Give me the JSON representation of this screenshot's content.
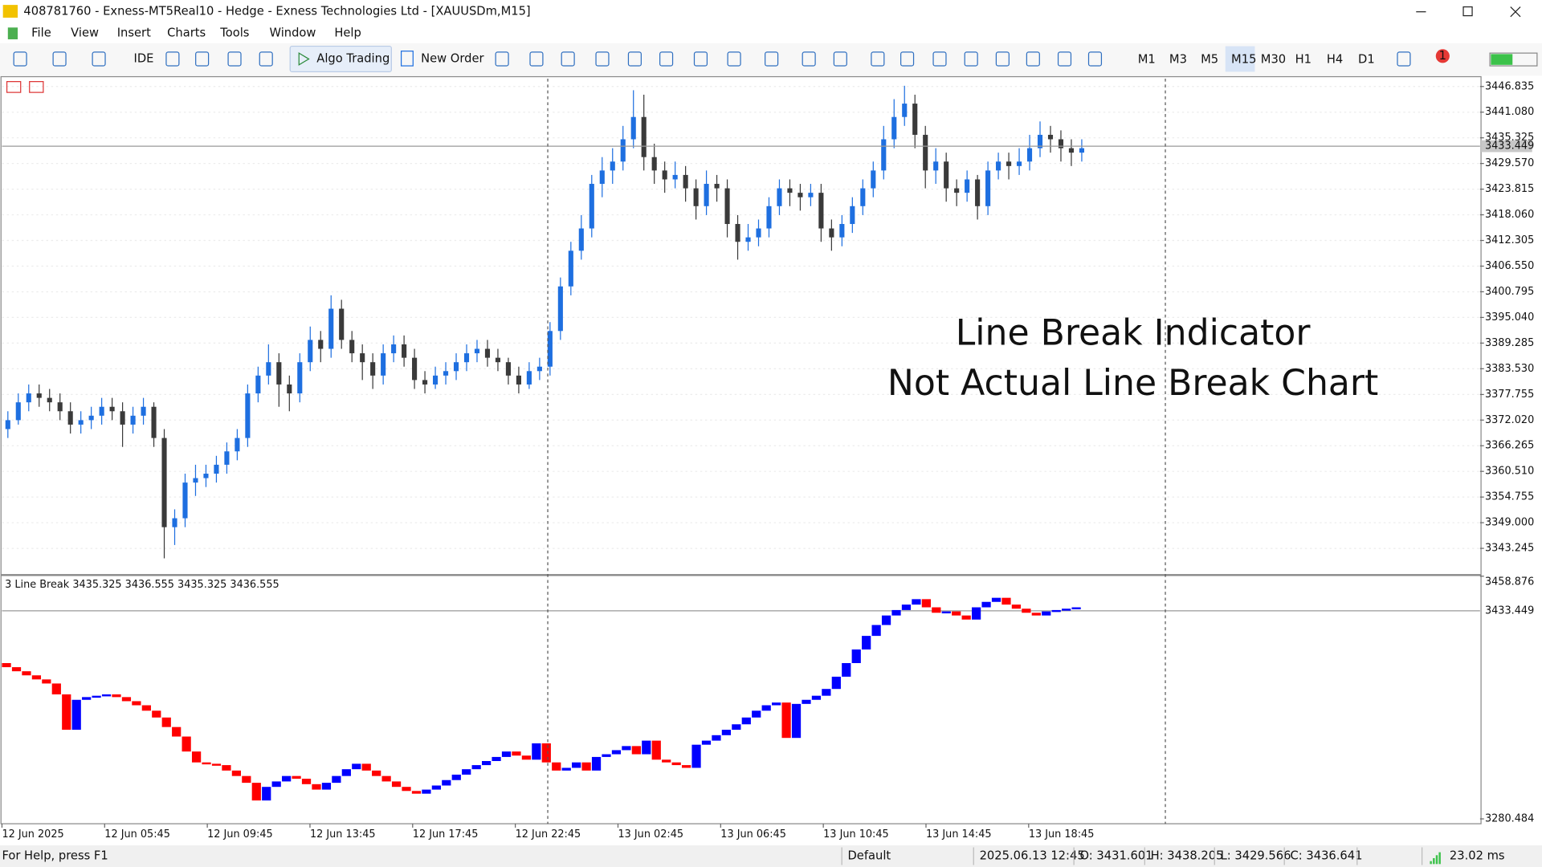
{
  "window": {
    "title": "408781760 - Exness-MT5Real10 - Hedge - Exness Technologies Ltd - [XAUUSDm,M15]"
  },
  "menu": [
    "File",
    "View",
    "Insert",
    "Charts",
    "Tools",
    "Window",
    "Help"
  ],
  "toolbar": {
    "buttons": [
      "IDE",
      "Algo Trading",
      "New Order"
    ],
    "timeframes": [
      "M1",
      "M3",
      "M5",
      "M15",
      "M30",
      "H1",
      "H4",
      "D1"
    ],
    "active_timeframe": "M15",
    "notifications": "1"
  },
  "chart_data": [
    {
      "type": "candlestick",
      "up_color": "#1e6fe0",
      "down_color": "#3a3a3a",
      "grid": true,
      "ylim": [
        3337.7,
        3448.6
      ],
      "yticks": [
        3446.835,
        {
          "value": 3441.08,
          "label": "3441.080"
        },
        3435.325,
        {
          "value": 3429.57,
          "label": "3429.570"
        },
        3423.815,
        {
          "value": 3418.06,
          "label": "3418.060"
        },
        3412.305,
        {
          "value": 3406.55,
          "label": "3406.550"
        },
        3400.795,
        {
          "value": 3395.04,
          "label": "3395.040"
        },
        3389.285,
        {
          "value": 3383.53,
          "label": "3383.530"
        },
        3377.755,
        {
          "value": 3372.02,
          "label": "3372.020"
        },
        3366.265,
        {
          "value": 3360.51,
          "label": "3360.510"
        },
        3354.755,
        {
          "value": 3349,
          "label": "3349.000"
        },
        3343.245
      ],
      "current_price": 3433.449,
      "annotations": [
        "Line Break Indicator",
        "Not Actual Line Break Chart"
      ],
      "annotation_color": "#6a2ddb",
      "candles": [
        [
          3370,
          3374,
          3368,
          3372
        ],
        [
          3372,
          3378,
          3371,
          3376
        ],
        [
          3376,
          3380,
          3374,
          3378
        ],
        [
          3378,
          3380,
          3375,
          3377
        ],
        [
          3377,
          3379,
          3374,
          3376
        ],
        [
          3376,
          3378,
          3372,
          3374
        ],
        [
          3374,
          3376,
          3369,
          3371
        ],
        [
          3371,
          3374,
          3369,
          3372
        ],
        [
          3372,
          3375,
          3370,
          3373
        ],
        [
          3373,
          3377,
          3371,
          3375
        ],
        [
          3375,
          3377,
          3372,
          3374
        ],
        [
          3374,
          3376,
          3366,
          3371
        ],
        [
          3371,
          3375,
          3369,
          3373
        ],
        [
          3373,
          3377,
          3371,
          3375
        ],
        [
          3375,
          3376,
          3366,
          3368
        ],
        [
          3368,
          3370,
          3341,
          3348
        ],
        [
          3348,
          3352,
          3344,
          3350
        ],
        [
          3350,
          3360,
          3348,
          3358
        ],
        [
          3358,
          3362,
          3355,
          3359
        ],
        [
          3359,
          3362,
          3357,
          3360
        ],
        [
          3360,
          3364,
          3358,
          3362
        ],
        [
          3362,
          3367,
          3360,
          3365
        ],
        [
          3365,
          3370,
          3363,
          3368
        ],
        [
          3368,
          3380,
          3366,
          3378
        ],
        [
          3378,
          3384,
          3376,
          3382
        ],
        [
          3382,
          3389,
          3380,
          3385
        ],
        [
          3385,
          3387,
          3375,
          3380
        ],
        [
          3380,
          3382,
          3374,
          3378
        ],
        [
          3378,
          3387,
          3376,
          3385
        ],
        [
          3385,
          3393,
          3383,
          3390
        ],
        [
          3390,
          3392,
          3385,
          3388
        ],
        [
          3388,
          3400,
          3386,
          3397
        ],
        [
          3397,
          3399,
          3388,
          3390
        ],
        [
          3390,
          3392,
          3385,
          3387
        ],
        [
          3387,
          3389,
          3381,
          3385
        ],
        [
          3385,
          3387,
          3379,
          3382
        ],
        [
          3382,
          3389,
          3380,
          3387
        ],
        [
          3387,
          3391,
          3385,
          3389
        ],
        [
          3389,
          3391,
          3384,
          3386
        ],
        [
          3386,
          3388,
          3379,
          3381
        ],
        [
          3381,
          3383,
          3378,
          3380
        ],
        [
          3380,
          3384,
          3379,
          3382
        ],
        [
          3382,
          3385,
          3380,
          3383
        ],
        [
          3383,
          3387,
          3381,
          3385
        ],
        [
          3385,
          3389,
          3383,
          3387
        ],
        [
          3387,
          3390,
          3385,
          3388
        ],
        [
          3388,
          3390,
          3384,
          3386
        ],
        [
          3386,
          3388,
          3383,
          3385
        ],
        [
          3385,
          3386,
          3380,
          3382
        ],
        [
          3382,
          3384,
          3378,
          3380
        ],
        [
          3380,
          3385,
          3379,
          3383
        ],
        [
          3383,
          3386,
          3381,
          3384
        ],
        [
          3384,
          3394,
          3382,
          3392
        ],
        [
          3392,
          3404,
          3390,
          3402
        ],
        [
          3402,
          3412,
          3400,
          3410
        ],
        [
          3410,
          3418,
          3408,
          3415
        ],
        [
          3415,
          3427,
          3413,
          3425
        ],
        [
          3425,
          3431,
          3422,
          3428
        ],
        [
          3428,
          3433,
          3425,
          3430
        ],
        [
          3430,
          3438,
          3428,
          3435
        ],
        [
          3435,
          3446,
          3433,
          3440
        ],
        [
          3440,
          3445,
          3428,
          3431
        ],
        [
          3431,
          3434,
          3425,
          3428
        ],
        [
          3428,
          3430,
          3423,
          3426
        ],
        [
          3426,
          3430,
          3424,
          3427
        ],
        [
          3427,
          3429,
          3421,
          3424
        ],
        [
          3424,
          3426,
          3417,
          3420
        ],
        [
          3420,
          3428,
          3418,
          3425
        ],
        [
          3425,
          3427,
          3421,
          3424
        ],
        [
          3424,
          3426,
          3413,
          3416
        ],
        [
          3416,
          3418,
          3408,
          3412
        ],
        [
          3412,
          3416,
          3410,
          3413
        ],
        [
          3413,
          3417,
          3411,
          3415
        ],
        [
          3415,
          3422,
          3413,
          3420
        ],
        [
          3420,
          3426,
          3418,
          3424
        ],
        [
          3424,
          3426,
          3420,
          3423
        ],
        [
          3423,
          3425,
          3419,
          3422
        ],
        [
          3422,
          3425,
          3420,
          3423
        ],
        [
          3423,
          3425,
          3412,
          3415
        ],
        [
          3415,
          3417,
          3410,
          3413
        ],
        [
          3413,
          3418,
          3411,
          3416
        ],
        [
          3416,
          3422,
          3414,
          3420
        ],
        [
          3420,
          3426,
          3418,
          3424
        ],
        [
          3424,
          3430,
          3422,
          3428
        ],
        [
          3428,
          3438,
          3426,
          3435
        ],
        [
          3435,
          3444,
          3433,
          3440
        ],
        [
          3440,
          3447,
          3438,
          3443
        ],
        [
          3443,
          3445,
          3433,
          3436
        ],
        [
          3436,
          3438,
          3424,
          3428
        ],
        [
          3428,
          3433,
          3425,
          3430
        ],
        [
          3430,
          3432,
          3421,
          3424
        ],
        [
          3424,
          3426,
          3420,
          3423
        ],
        [
          3423,
          3428,
          3421,
          3426
        ],
        [
          3426,
          3427,
          3417,
          3420
        ],
        [
          3420,
          3430,
          3418,
          3428
        ],
        [
          3428,
          3432,
          3426,
          3430
        ],
        [
          3430,
          3432,
          3426,
          3429
        ],
        [
          3429,
          3433,
          3427,
          3430
        ],
        [
          3430,
          3436,
          3428,
          3433
        ],
        [
          3433,
          3439,
          3431,
          3436
        ],
        [
          3436,
          3438,
          3432,
          3435
        ],
        [
          3435,
          3437,
          3430,
          3433
        ],
        [
          3433,
          3435,
          3429,
          3432
        ],
        [
          3432,
          3435,
          3430,
          3433
        ]
      ]
    },
    {
      "type": "line_break",
      "label": "3 Line Break 3435.325 3436.555 3435.325 3436.555",
      "up_color": "#0000ff",
      "down_color": "#ff0000",
      "grid": true,
      "ylim": [
        3276.9,
        3459
      ],
      "yticks": [
        3458.876,
        3280.484
      ],
      "current_price": 3433.449,
      "levels": [
        3395,
        3392,
        3389,
        3386,
        3383,
        3380,
        3372,
        3346,
        3368,
        3370,
        3371,
        3372,
        3370,
        3367,
        3364,
        3360,
        3355,
        3348,
        3341,
        3330,
        3322,
        3321,
        3320,
        3316,
        3312,
        3307,
        3294,
        3304,
        3308,
        3312,
        3310,
        3306,
        3302,
        3307,
        3312,
        3317,
        3321,
        3316,
        3312,
        3308,
        3304,
        3301,
        3299,
        3302,
        3305,
        3309,
        3313,
        3317,
        3320,
        3323,
        3326,
        3330,
        3327,
        3324,
        3336,
        3322,
        3316,
        3318,
        3322,
        3316,
        3326,
        3328,
        3331,
        3334,
        3328,
        3338,
        3324,
        3322,
        3320,
        3318,
        3335,
        3338,
        3342,
        3346,
        3350,
        3355,
        3360,
        3364,
        3366,
        3340,
        3365,
        3368,
        3371,
        3376,
        3385,
        3395,
        3405,
        3415,
        3423,
        3430,
        3434,
        3438,
        3442,
        3436,
        3432,
        3433,
        3430,
        3427,
        3436,
        3440,
        3443,
        3438,
        3435,
        3432,
        3430,
        3433,
        3434,
        3435,
        3436
      ]
    }
  ],
  "time_axis": {
    "labels": [
      "12 Jun 2025",
      "12 Jun 05:45",
      "12 Jun 09:45",
      "12 Jun 13:45",
      "12 Jun 17:45",
      "12 Jun 22:45",
      "13 Jun 02:45",
      "13 Jun 06:45",
      "13 Jun 10:45",
      "13 Jun 14:45",
      "13 Jun 18:45"
    ]
  },
  "status_bar": {
    "help": "For Help, press F1",
    "profile": "Default",
    "time": "2025.06.13 12:45",
    "open": "O: 3431.601",
    "high": "H: 3438.205",
    "low": "L: 3429.566",
    "close": "C: 3436.641",
    "ping": "23.02 ms"
  }
}
